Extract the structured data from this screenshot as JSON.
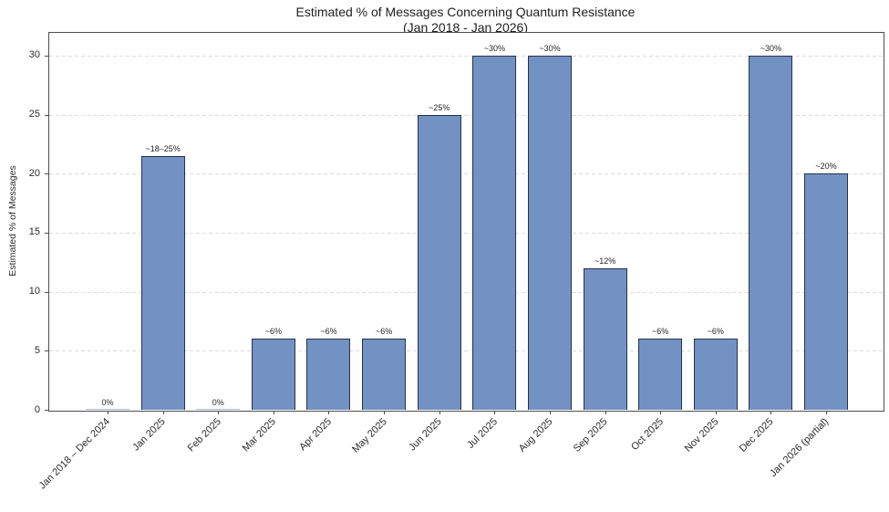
{
  "chart_data": {
    "type": "bar",
    "title": "Estimated % of Messages Concerning Quantum Resistance",
    "subtitle": "(Jan 2018 - Jan 2026)",
    "xlabel": "",
    "ylabel": "Estimated % of Messages",
    "ylim": [
      0,
      32
    ],
    "yticks": [
      0,
      5,
      10,
      15,
      20,
      25,
      30
    ],
    "grid": "horizontal-dashed",
    "legend": "none",
    "categories": [
      "Jan 2018 – Dec 2024",
      "Jan 2025",
      "Feb 2025",
      "Mar 2025",
      "Apr 2025",
      "May 2025",
      "Jun 2025",
      "Jul 2025",
      "Aug 2025",
      "Sep 2025",
      "Oct 2025",
      "Nov 2025",
      "Dec 2025",
      "Jan 2026 (partial)"
    ],
    "values": [
      0,
      21.5,
      0,
      6,
      6,
      6,
      25,
      30,
      30,
      12,
      6,
      6,
      30,
      20
    ],
    "bar_labels": [
      "0%",
      "~18–25%",
      "0%",
      "~6%",
      "~6%",
      "~6%",
      "~25%",
      "~30%",
      "~30%",
      "~12%",
      "~6%",
      "~6%",
      "~30%",
      "~20%"
    ],
    "colors": {
      "bar_fill": "#7292c4",
      "bar_edge": "#27314c",
      "grid": "#dcdcdc",
      "axis": "#4d4d4d",
      "text": "#262626"
    }
  }
}
